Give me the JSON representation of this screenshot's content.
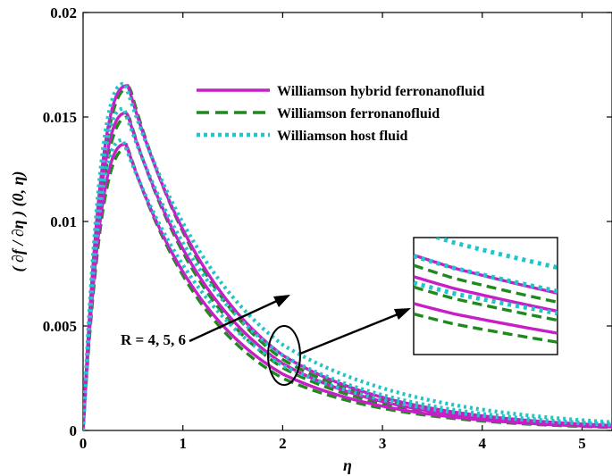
{
  "chart_data": {
    "type": "line",
    "title": "",
    "xlabel": "η",
    "ylabel": "( ∂f / ∂η ) (0, η)",
    "xlim": [
      0,
      5.3
    ],
    "ylim": [
      0,
      0.02
    ],
    "xticks": [
      0,
      1,
      2,
      3,
      4,
      5
    ],
    "xtick_labels": [
      "0",
      "1",
      "2",
      "3",
      "4",
      "5"
    ],
    "yticks": [
      0,
      0.005,
      0.01,
      0.015,
      0.02
    ],
    "ytick_labels": [
      "0",
      "0.005",
      "0.01",
      "0.015",
      "0.02"
    ],
    "grid": false,
    "legend_position": "top-right",
    "legend": [
      {
        "label": "Williamson hybrid ferronanofluid",
        "color": "#c71fc7",
        "style": "solid"
      },
      {
        "label": "Williamson ferronanofluid",
        "color": "#1e8a1e",
        "style": "dashed"
      },
      {
        "label": "Williamson host fluid",
        "color": "#22c4c8",
        "style": "dotted"
      }
    ],
    "annotation": "R = 4, 5, 6",
    "parameter_values": [
      4,
      5,
      6
    ],
    "series": [
      {
        "fluid": "hybrid",
        "R": 4,
        "peak_x": 0.45,
        "peak_y": 0.0165,
        "y_at_2": 0.0036,
        "y_at_4": 0.0007
      },
      {
        "fluid": "hybrid",
        "R": 5,
        "peak_x": 0.44,
        "peak_y": 0.0152,
        "y_at_2": 0.0032,
        "y_at_4": 0.0006
      },
      {
        "fluid": "hybrid",
        "R": 6,
        "peak_x": 0.43,
        "peak_y": 0.0137,
        "y_at_2": 0.0027,
        "y_at_4": 0.0005
      },
      {
        "fluid": "ferro",
        "R": 4,
        "peak_x": 0.47,
        "peak_y": 0.0164,
        "y_at_2": 0.0034,
        "y_at_4": 0.00065
      },
      {
        "fluid": "ferro",
        "R": 5,
        "peak_x": 0.46,
        "peak_y": 0.015,
        "y_at_2": 0.003,
        "y_at_4": 0.00055
      },
      {
        "fluid": "ferro",
        "R": 6,
        "peak_x": 0.45,
        "peak_y": 0.0135,
        "y_at_2": 0.0025,
        "y_at_4": 0.00045
      },
      {
        "fluid": "host",
        "R": 4,
        "peak_x": 0.42,
        "peak_y": 0.0166,
        "y_at_2": 0.0041,
        "y_at_4": 0.001
      },
      {
        "fluid": "host",
        "R": 5,
        "peak_x": 0.41,
        "peak_y": 0.0154,
        "y_at_2": 0.0036,
        "y_at_4": 0.0008
      },
      {
        "fluid": "host",
        "R": 6,
        "peak_x": 0.4,
        "peak_y": 0.0139,
        "y_at_2": 0.0031,
        "y_at_4": 0.0007
      }
    ]
  }
}
